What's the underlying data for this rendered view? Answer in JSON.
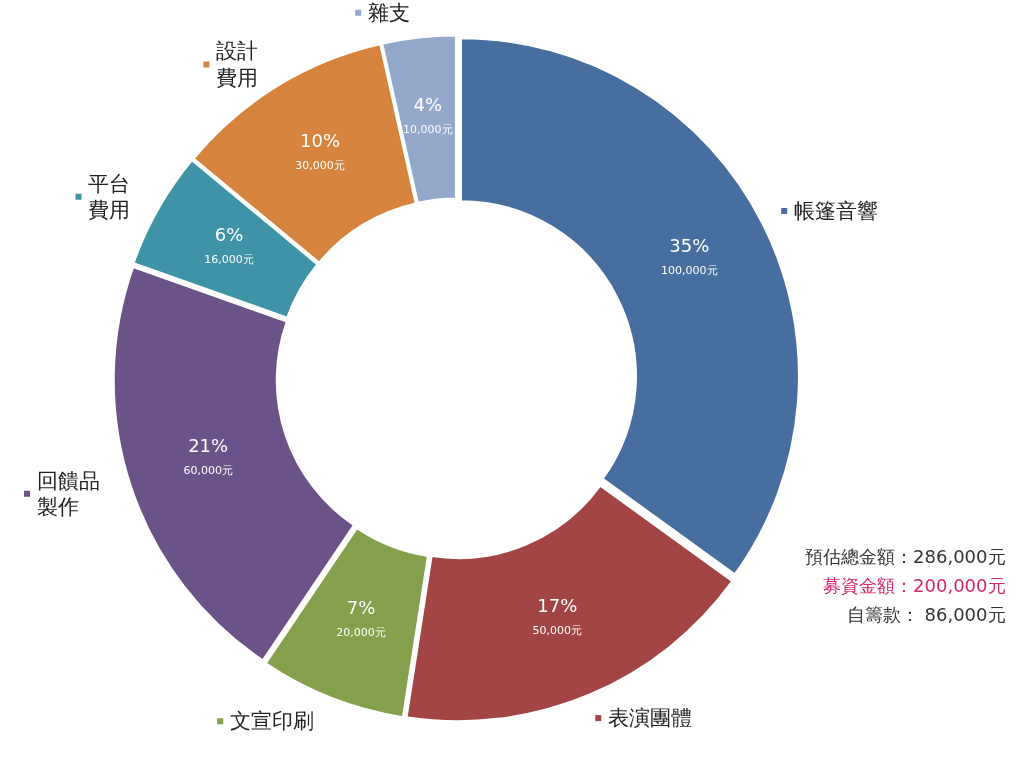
{
  "chart_data": {
    "type": "donut",
    "categories": [
      "帳篷音響",
      "表演團體",
      "文宣印刷",
      "回饋品製作",
      "平台費用",
      "設計費用",
      "雜支"
    ],
    "values": [
      100000,
      50000,
      20000,
      60000,
      16000,
      30000,
      10000
    ],
    "colors": [
      "#466f9f",
      "#a24544",
      "#85a04d",
      "#6b5289",
      "#3f93a7",
      "#d5833d",
      "#93a8cb"
    ],
    "value_labels": [
      "35%\n100,000元",
      "17%\n50,000元",
      "7%\n20,000元",
      "21%\n60,000元",
      "6%\n16,000元",
      "10%\n30,000元",
      "4%\n10,000元"
    ],
    "annotations": [
      "預估總金額：286,000元",
      "募資金額：200,000元",
      "自籌款： 86,000元"
    ],
    "legend": "right"
  }
}
